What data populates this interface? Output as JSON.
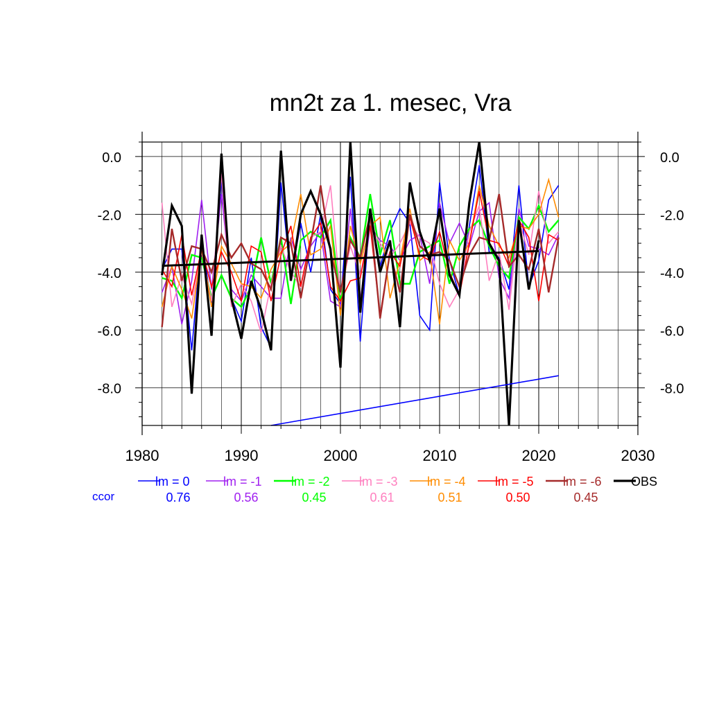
{
  "chart_data": {
    "type": "line",
    "title": "mn2t za 1. mesec, Vra",
    "xlabel": "",
    "ylabel": "",
    "xlim": [
      1980,
      2030
    ],
    "ylim": [
      -9.3,
      0.5
    ],
    "x_ticks": [
      1980,
      1990,
      2000,
      2010,
      2020,
      2030
    ],
    "x_tick_labels": [
      "1980",
      "1990",
      "2000",
      "2010",
      "2020",
      "2030"
    ],
    "y_ticks": [
      0,
      -2,
      -4,
      -6,
      -8
    ],
    "y_tick_labels": [
      "0.0",
      "-2.0",
      "-4.0",
      "-6.0",
      "-8.0"
    ],
    "grid": true,
    "legend_placement": "bottom",
    "ccor_label": "ccor",
    "ccor_color": "#0000ff",
    "series": [
      {
        "name": "lm = 0",
        "color": "#0000ff",
        "width": 1.6,
        "ccor": "0.76",
        "x": [
          1982,
          1983,
          1984,
          1985,
          1986,
          1987,
          1988,
          1989,
          1990,
          1991,
          1992,
          1993,
          1994,
          1995,
          1996,
          1997,
          1998,
          1999,
          2000,
          2001,
          2002,
          2003,
          2004,
          2005,
          2006,
          2007,
          2008,
          2009,
          2010,
          2011,
          2012,
          2013,
          2014,
          2015,
          2016,
          2017,
          2018,
          2019,
          2020,
          2021,
          2022
        ],
        "y": [
          -3.9,
          -3.2,
          -3.2,
          -6.7,
          -2.8,
          -5.2,
          -0.8,
          -4.9,
          -5.7,
          -3.5,
          -5.9,
          -6.6,
          -0.9,
          -4.2,
          -2.3,
          -4.0,
          -2.0,
          -4.6,
          -5.1,
          -0.7,
          -6.4,
          -1.8,
          -3.8,
          -2.6,
          -1.8,
          -2.3,
          -5.5,
          -6.0,
          -0.9,
          -3.6,
          -4.8,
          -2.4,
          -0.3,
          -3.3,
          -3.5,
          -4.6,
          -1.0,
          -4.5,
          -3.6,
          -1.5,
          -1.0
        ]
      },
      {
        "name": "lm = -1",
        "color": "#a020f0",
        "width": 1.6,
        "ccor": "0.56",
        "x": [
          1982,
          1983,
          1984,
          1985,
          1986,
          1987,
          1988,
          1989,
          1990,
          1991,
          1992,
          1993,
          1994,
          1995,
          1996,
          1997,
          1998,
          1999,
          2000,
          2001,
          2002,
          2003,
          2004,
          2005,
          2006,
          2007,
          2008,
          2009,
          2010,
          2011,
          2012,
          2013,
          2014,
          2015,
          2016,
          2017,
          2018,
          2019,
          2020,
          2021,
          2022
        ],
        "y": [
          -4.7,
          -3.8,
          -5.8,
          -4.3,
          -1.5,
          -4.6,
          -1.3,
          -4.6,
          -5.0,
          -4.1,
          -4.5,
          -4.9,
          -4.9,
          -2.8,
          -3.9,
          -3.1,
          -2.6,
          -5.0,
          -5.2,
          -1.8,
          -5.0,
          -2.4,
          -2.9,
          -3.1,
          -3.6,
          -2.9,
          -2.7,
          -4.4,
          -1.6,
          -3.0,
          -2.3,
          -3.1,
          -1.9,
          -1.6,
          -4.2,
          -4.9,
          -1.8,
          -3.1,
          -3.2,
          -3.4,
          -2.7
        ]
      },
      {
        "name": "lm = -2",
        "color": "#00ff00",
        "width": 2.4,
        "ccor": "0.45",
        "x": [
          1982,
          1983,
          1984,
          1985,
          1986,
          1987,
          1988,
          1989,
          1990,
          1991,
          1992,
          1993,
          1994,
          1995,
          1996,
          1997,
          1998,
          1999,
          2000,
          2001,
          2002,
          2003,
          2004,
          2005,
          2006,
          2007,
          2008,
          2009,
          2010,
          2011,
          2012,
          2013,
          2014,
          2015,
          2016,
          2017,
          2018,
          2019,
          2020,
          2021,
          2022
        ],
        "y": [
          -4.2,
          -4.3,
          -4.9,
          -3.4,
          -3.5,
          -4.9,
          -4.1,
          -4.9,
          -5.2,
          -4.5,
          -2.8,
          -4.4,
          -2.8,
          -5.1,
          -2.9,
          -2.6,
          -2.8,
          -2.2,
          -5.0,
          -2.8,
          -3.5,
          -1.3,
          -3.4,
          -2.2,
          -4.4,
          -4.4,
          -3.3,
          -3.1,
          -2.9,
          -4.4,
          -3.1,
          -2.5,
          -2.2,
          -3.1,
          -3.8,
          -4.2,
          -2.1,
          -2.5,
          -1.7,
          -2.6,
          -2.2
        ]
      },
      {
        "name": "lm = -3",
        "color": "#ff7fbf",
        "width": 1.6,
        "ccor": "0.61",
        "x": [
          1982,
          1983,
          1984,
          1985,
          1986,
          1987,
          1988,
          1989,
          1990,
          1991,
          1992,
          1993,
          1994,
          1995,
          1996,
          1997,
          1998,
          1999,
          2000,
          2001,
          2002,
          2003,
          2004,
          2005,
          2006,
          2007,
          2008,
          2009,
          2010,
          2011,
          2012,
          2013,
          2014,
          2015,
          2016,
          2017,
          2018,
          2019,
          2020,
          2021,
          2022
        ],
        "y": [
          -1.6,
          -5.2,
          -4.1,
          -5.1,
          -3.3,
          -5.0,
          -0.6,
          -5.2,
          -4.4,
          -5.0,
          -6.1,
          -4.4,
          -3.1,
          -4.0,
          -4.5,
          -2.8,
          -2.6,
          -1.0,
          -4.8,
          -3.1,
          -4.1,
          -2.4,
          -3.0,
          -3.5,
          -3.0,
          -2.3,
          -2.8,
          -3.0,
          -4.4,
          -5.2,
          -4.6,
          -2.6,
          -1.7,
          -4.3,
          -3.3,
          -5.3,
          -2.2,
          -3.4,
          -1.2,
          -3.0,
          -2.6
        ]
      },
      {
        "name": "lm = -4",
        "color": "#ff8c00",
        "width": 1.6,
        "ccor": "0.51",
        "x": [
          1982,
          1983,
          1984,
          1985,
          1986,
          1987,
          1988,
          1989,
          1990,
          1991,
          1992,
          1993,
          1994,
          1995,
          1996,
          1997,
          1998,
          1999,
          2000,
          2001,
          2002,
          2003,
          2004,
          2005,
          2006,
          2007,
          2008,
          2009,
          2010,
          2011,
          2012,
          2013,
          2014,
          2015,
          2016,
          2017,
          2018,
          2019,
          2020,
          2021,
          2022
        ],
        "y": [
          -5.2,
          -3.8,
          -4.6,
          -5.6,
          -3.2,
          -5.2,
          -3.1,
          -3.7,
          -4.4,
          -4.5,
          -4.9,
          -3.9,
          -3.3,
          -3.0,
          -1.3,
          -3.4,
          -3.2,
          -2.4,
          -5.5,
          -2.4,
          -3.7,
          -2.4,
          -2.1,
          -4.9,
          -3.6,
          -1.8,
          -3.6,
          -3.3,
          -5.8,
          -2.9,
          -3.6,
          -3.0,
          -1.0,
          -2.4,
          -3.1,
          -3.5,
          -2.4,
          -2.5,
          -2.0,
          -0.8,
          -2.1
        ]
      },
      {
        "name": "lm = -5",
        "color": "#ff0000",
        "width": 1.6,
        "ccor": "0.50",
        "x": [
          1982,
          1983,
          1984,
          1985,
          1986,
          1987,
          1988,
          1989,
          1990,
          1991,
          1992,
          1993,
          1994,
          1995,
          1996,
          1997,
          1998,
          1999,
          2000,
          2001,
          2002,
          2003,
          2004,
          2005,
          2006,
          2007,
          2008,
          2009,
          2010,
          2011,
          2012,
          2013,
          2014,
          2015,
          2016,
          2017,
          2018,
          2019,
          2020,
          2021,
          2022
        ],
        "y": [
          -3.9,
          -4.5,
          -2.7,
          -4.8,
          -3.2,
          -4.5,
          -3.3,
          -4.0,
          -5.0,
          -3.1,
          -3.3,
          -5.0,
          -3.4,
          -2.4,
          -4.5,
          -2.8,
          -2.3,
          -4.5,
          -5.0,
          -4.3,
          -4.2,
          -2.4,
          -5.5,
          -3.3,
          -3.8,
          -2.1,
          -3.4,
          -3.6,
          -2.6,
          -4.0,
          -4.8,
          -3.0,
          -1.2,
          -2.9,
          -3.0,
          -3.8,
          -2.2,
          -2.8,
          -5.0,
          -2.7,
          -2.9
        ]
      },
      {
        "name": "lm = -6",
        "color": "#a52a2a",
        "width": 2.4,
        "ccor": "0.45",
        "x": [
          1982,
          1983,
          1984,
          1985,
          1986,
          1987,
          1988,
          1989,
          1990,
          1991,
          1992,
          1993,
          1994,
          1995,
          1996,
          1997,
          1998,
          1999,
          2000,
          2001,
          2002,
          2003,
          2004,
          2005,
          2006,
          2007,
          2008,
          2009,
          2010,
          2011,
          2012,
          2013,
          2014,
          2015,
          2016,
          2017,
          2018,
          2019,
          2020,
          2021,
          2022
        ],
        "y": [
          -5.9,
          -2.5,
          -4.3,
          -3.1,
          -3.2,
          -4.0,
          -2.7,
          -3.5,
          -3.0,
          -3.7,
          -3.9,
          -4.6,
          -2.8,
          -3.0,
          -4.9,
          -3.0,
          -1.0,
          -3.3,
          -4.7,
          -2.9,
          -3.5,
          -2.0,
          -5.6,
          -3.3,
          -4.7,
          -2.0,
          -3.1,
          -3.4,
          -3.3,
          -3.6,
          -4.5,
          -3.4,
          -2.8,
          -2.9,
          -1.3,
          -3.8,
          -3.4,
          -3.9,
          -2.5,
          -4.7,
          -2.8
        ]
      },
      {
        "name": "OBS",
        "color": "#000000",
        "width": 3.2,
        "ccor": "",
        "x": [
          1982,
          1983,
          1984,
          1985,
          1986,
          1987,
          1988,
          1989,
          1990,
          1991,
          1992,
          1993,
          1994,
          1995,
          1996,
          1997,
          1998,
          1999,
          2000,
          2001,
          2002,
          2003,
          2004,
          2005,
          2006,
          2007,
          2008,
          2009,
          2010,
          2011,
          2012,
          2013,
          2014,
          2015,
          2016,
          2017,
          2018,
          2019,
          2020
        ],
        "y": [
          -4.1,
          -1.7,
          -2.4,
          -8.2,
          -2.7,
          -6.2,
          0.1,
          -4.9,
          -6.3,
          -4.3,
          -5.3,
          -6.7,
          0.2,
          -4.3,
          -2.0,
          -1.2,
          -2.0,
          -3.2,
          -7.3,
          0.5,
          -5.4,
          -1.8,
          -4.0,
          -2.9,
          -5.9,
          -0.9,
          -2.6,
          -3.6,
          -1.8,
          -4.1,
          -4.8,
          -1.6,
          0.5,
          -3.0,
          -3.6,
          -9.3,
          -2.2,
          -4.6,
          -2.9
        ]
      }
    ],
    "trend_lines": [
      {
        "name": "OBS trend",
        "color": "#000000",
        "width": 3,
        "x": [
          1982,
          2020
        ],
        "y": [
          -3.78,
          -3.27
        ]
      },
      {
        "name": "lm = 0 trend",
        "color": "#0000ff",
        "width": 1.6,
        "x": [
          1993,
          2022
        ],
        "y": [
          -9.3,
          -7.58
        ]
      }
    ]
  }
}
